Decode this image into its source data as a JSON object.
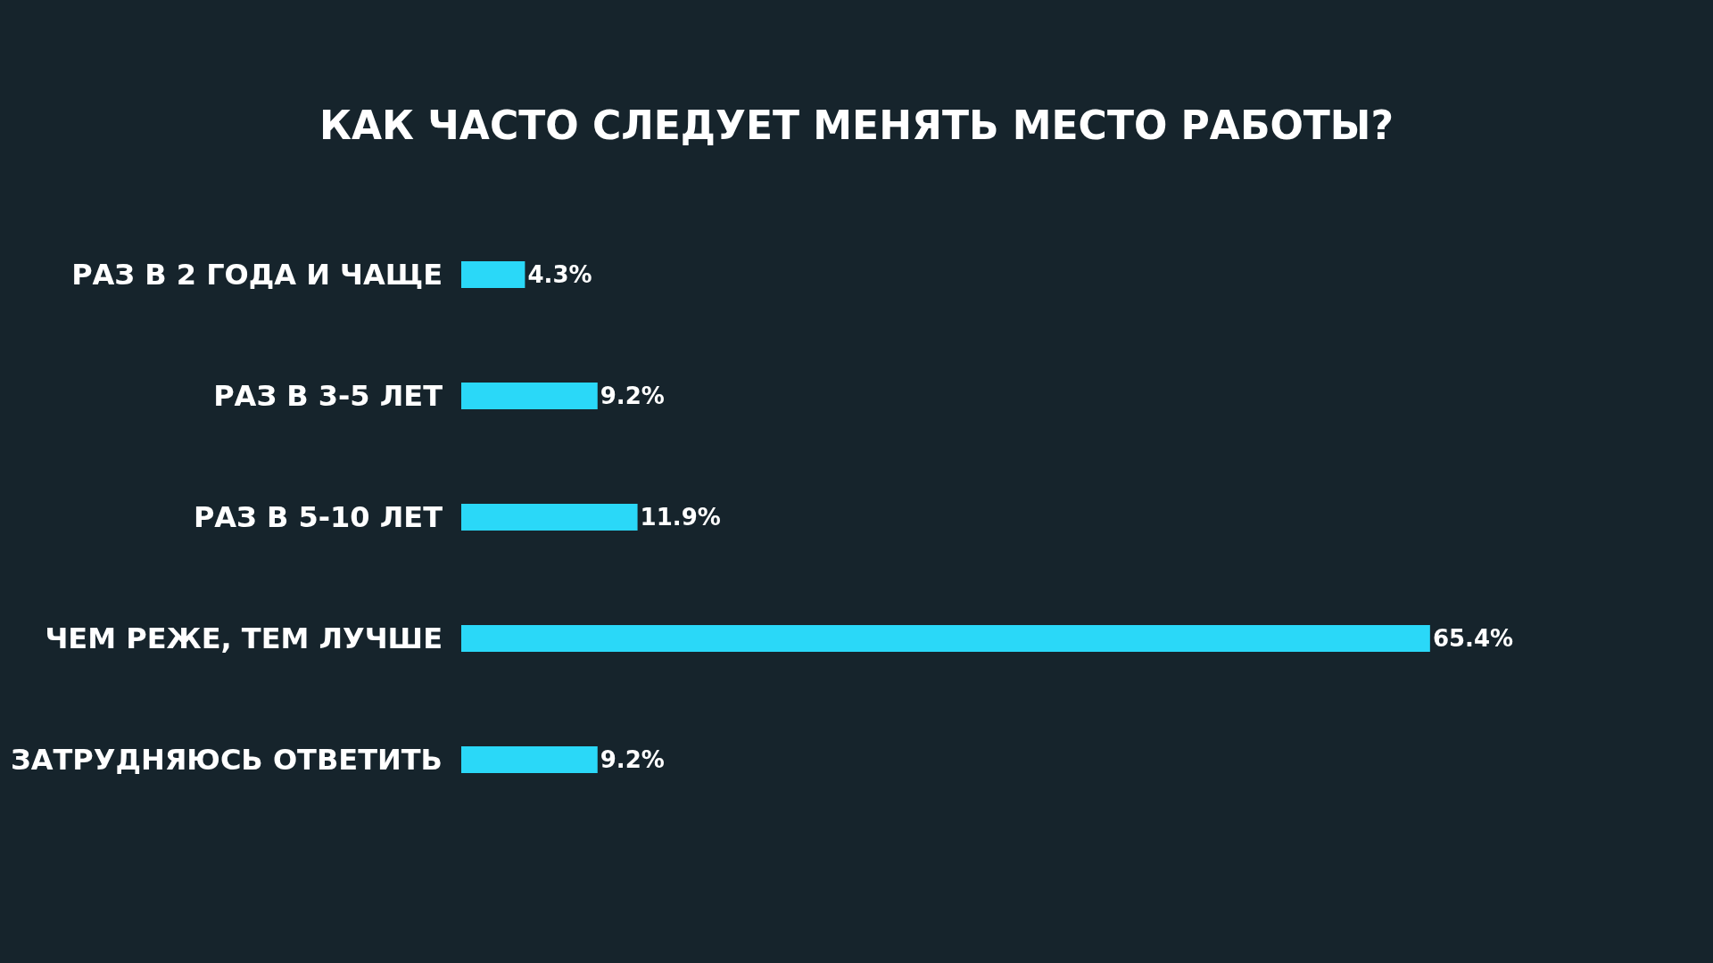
{
  "chart_data": {
    "type": "bar",
    "orientation": "horizontal",
    "title": "КАК ЧАСТО СЛЕДУЕТ МЕНЯТЬ МЕСТО РАБОТЫ?",
    "categories": [
      "РАЗ В 2 ГОДА И ЧАЩЕ",
      "РАЗ В 3-5 ЛЕТ",
      "РАЗ В 5-10 ЛЕТ",
      "ЧЕМ РЕЖЕ, ТЕМ ЛУЧШЕ",
      "ЗАТРУДНЯЮСЬ ОТВЕТИТЬ"
    ],
    "values": [
      4.3,
      9.2,
      11.9,
      65.4,
      9.2
    ],
    "value_labels": [
      "4.3%",
      "9.2%",
      "11.9%",
      "65.4%",
      "9.2%"
    ],
    "color": "#2ad8f8"
  }
}
